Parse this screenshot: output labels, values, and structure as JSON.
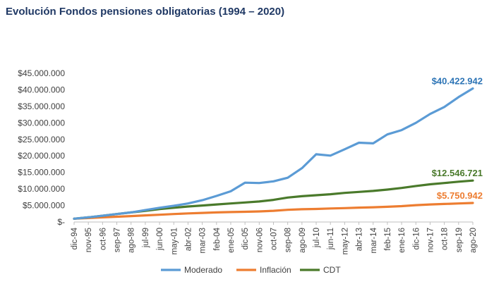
{
  "chart_data": {
    "type": "line",
    "title": "Evolución Fondos pensiones obligatorias (1994 – 2020)",
    "xlabel": "",
    "ylabel": "",
    "x_tick_labels": [
      "dic-94",
      "nov-95",
      "oct-96",
      "sep-97",
      "ago-98",
      "jul-99",
      "jun-00",
      "may-01",
      "abr-02",
      "mar-03",
      "feb-04",
      "ene-05",
      "dic-05",
      "nov-06",
      "oct-07",
      "sep-08",
      "ago-09",
      "jul-10",
      "jun-11",
      "may-12",
      "abr-13",
      "mar-14",
      "feb-15",
      "ene-16",
      "dic-16",
      "nov-17",
      "oct-18",
      "sep-19",
      "ago-20"
    ],
    "y_tick_labels": [
      "$-",
      "$5.000.000",
      "$10.000.000",
      "$15.000.000",
      "$20.000.000",
      "$25.000.000",
      "$30.000.000",
      "$35.000.000",
      "$40.000.000",
      "$45.000.000"
    ],
    "ylim": [
      0,
      45000000
    ],
    "grid": false,
    "legend_position": "bottom",
    "series": [
      {
        "name": "Moderado",
        "color": "#5b9bd5",
        "end_label": "$40.422.942",
        "values": [
          1000000,
          1400000,
          1900000,
          2400000,
          2900000,
          3600000,
          4300000,
          4900000,
          5600000,
          6600000,
          7900000,
          9300000,
          11900000,
          11800000,
          12300000,
          13400000,
          16300000,
          20500000,
          20100000,
          22000000,
          24000000,
          23800000,
          26500000,
          27800000,
          30000000,
          32700000,
          34800000,
          37800000,
          40422942
        ]
      },
      {
        "name": "Inflación",
        "color": "#ed7d31",
        "end_label": "$5.750.942",
        "values": [
          1000000,
          1200000,
          1400000,
          1600000,
          1800000,
          2000000,
          2200000,
          2400000,
          2600000,
          2750000,
          2900000,
          3000000,
          3100000,
          3200000,
          3400000,
          3700000,
          3850000,
          3950000,
          4100000,
          4200000,
          4350000,
          4450000,
          4600000,
          4800000,
          5100000,
          5300000,
          5450000,
          5600000,
          5750942
        ]
      },
      {
        "name": "CDT",
        "color": "#4a7a2b",
        "end_label": "$12.546.721",
        "values": [
          1000000,
          1400000,
          1900000,
          2400000,
          2900000,
          3400000,
          3900000,
          4300000,
          4700000,
          5000000,
          5300000,
          5600000,
          5900000,
          6200000,
          6700000,
          7400000,
          7800000,
          8100000,
          8400000,
          8800000,
          9100000,
          9400000,
          9800000,
          10300000,
          10900000,
          11400000,
          11800000,
          12200000,
          12546721
        ]
      }
    ]
  }
}
